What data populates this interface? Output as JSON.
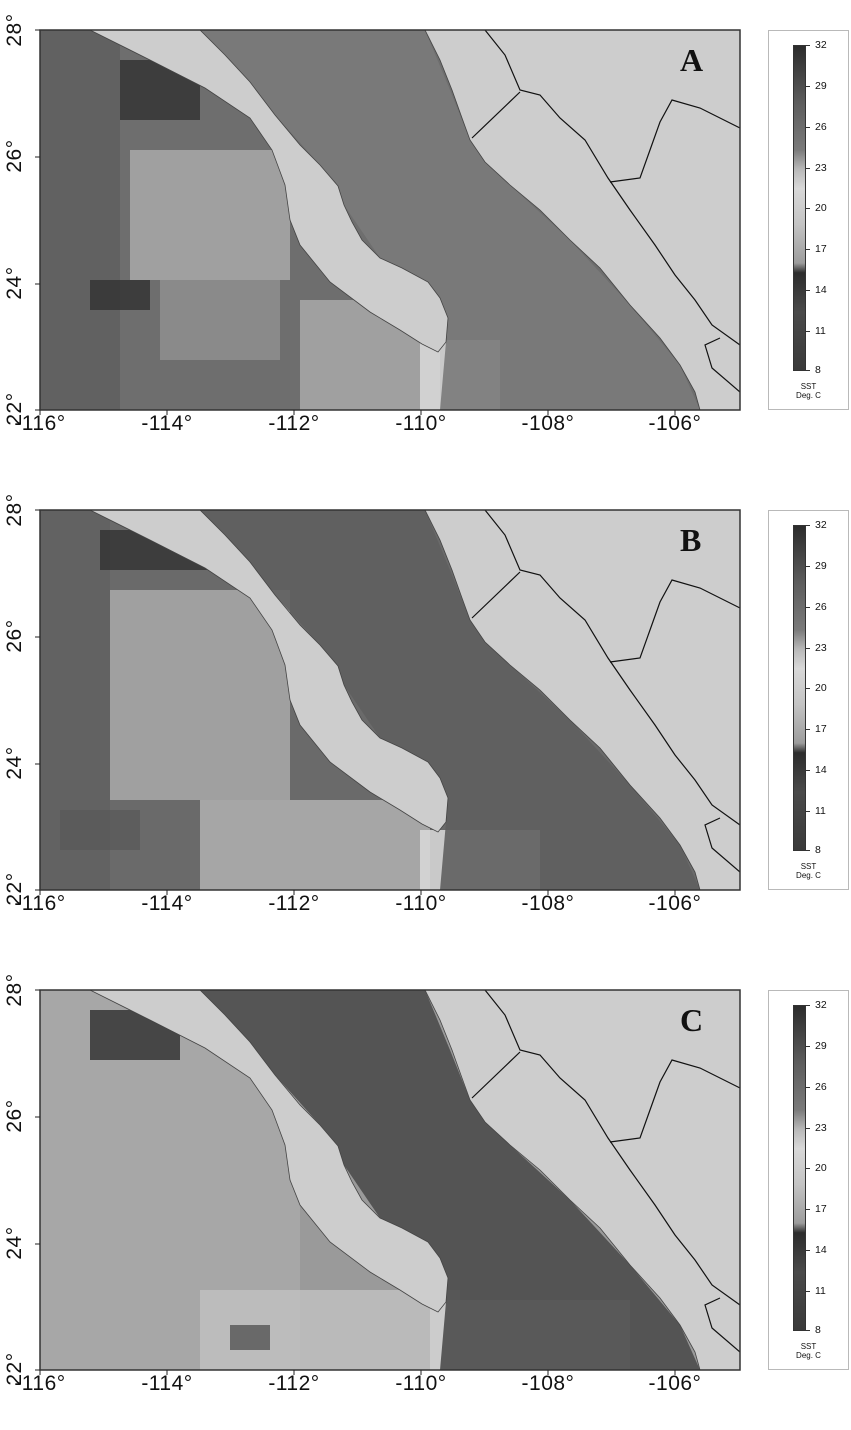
{
  "panels": [
    {
      "letter": "A",
      "state": "a"
    },
    {
      "letter": "B",
      "state": "b"
    },
    {
      "letter": "C",
      "state": "c"
    }
  ],
  "axes": {
    "y_labels": [
      "28°",
      "26°",
      "24°",
      "22°"
    ],
    "x_labels": [
      "-116°",
      "-114°",
      "-112°",
      "-110°",
      "-108°",
      "-106°"
    ]
  },
  "colorbar": {
    "ticks": [
      "32",
      "29",
      "26",
      "23",
      "20",
      "17",
      "14",
      "11",
      "8"
    ],
    "quantity": "SST",
    "unit": "Deg. C"
  },
  "colors": {
    "land": "#cdcdcd",
    "ocean_warm": "#6e6e6e",
    "ocean_cool": "#a9a9a9",
    "very_warm": "#353535",
    "cold_upwelling": "#d9d9d9",
    "frame": "#333333"
  }
}
